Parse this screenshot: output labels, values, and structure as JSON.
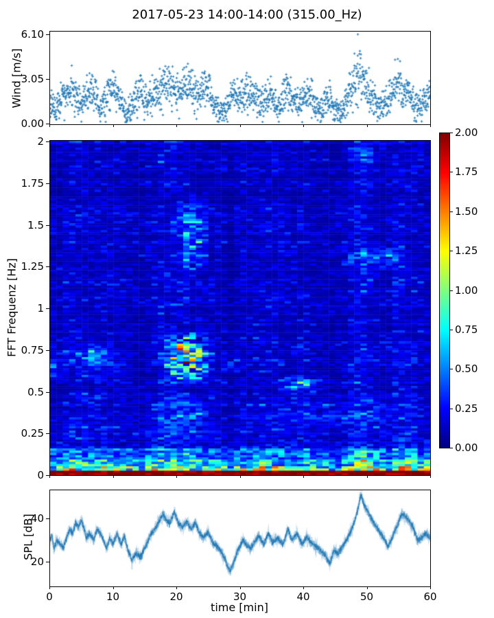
{
  "title": "2017-05-23 14:00-14:00 (315.00_Hz)",
  "colors": {
    "series_blue": "#1f77b4",
    "spine": "#000000",
    "background": "#ffffff",
    "colormap_min": "#000080",
    "colormap_max": "#800000"
  },
  "chart_data": [
    {
      "id": "wind",
      "type": "scatter",
      "marker": "plus",
      "ylabel": "Wind [m/s]",
      "ytick_labels": [
        "0.00",
        "3.05",
        "6.10"
      ],
      "ytick_values": [
        0,
        3.05,
        6.1
      ],
      "xtick_values": [
        0,
        10,
        20,
        30,
        40,
        50,
        60
      ],
      "ylim": [
        -0.05,
        6.33
      ],
      "xlim": [
        0,
        60
      ],
      "n_points": 1750,
      "seed": 42,
      "peak_point": [
        48.6,
        6.1
      ],
      "envelope_t_step_min": 1,
      "envelope_mean": [
        1.6,
        0.9,
        1.8,
        2.2,
        2.0,
        1.2,
        2.0,
        2.2,
        1.0,
        1.8,
        2.6,
        1.8,
        0.7,
        1.2,
        2.2,
        1.5,
        1.8,
        2.2,
        2.6,
        2.6,
        2.0,
        2.4,
        2.8,
        1.9,
        2.2,
        2.4,
        1.4,
        0.7,
        1.0,
        2.2,
        1.6,
        2.2,
        2.2,
        1.2,
        1.6,
        1.9,
        1.0,
        1.9,
        2.2,
        1.4,
        1.9,
        2.2,
        1.2,
        0.9,
        1.7,
        1.1,
        0.8,
        1.9,
        2.9,
        3.4,
        2.4,
        1.7,
        1.1,
        1.5,
        2.0,
        2.8,
        2.4,
        1.8,
        1.1,
        1.6,
        1.9
      ],
      "envelope_max": [
        2.8,
        1.6,
        3.3,
        4.4,
        3.6,
        2.2,
        3.4,
        3.6,
        1.9,
        3.3,
        4.35,
        3.0,
        1.4,
        2.4,
        3.9,
        2.6,
        3.2,
        3.8,
        4.5,
        4.7,
        3.4,
        4.0,
        4.75,
        3.2,
        3.6,
        3.6,
        2.4,
        1.4,
        2.0,
        3.5,
        2.8,
        3.5,
        3.4,
        2.2,
        2.8,
        3.3,
        1.8,
        3.2,
        3.8,
        2.4,
        3.3,
        3.45,
        2.2,
        1.7,
        3.2,
        2.0,
        1.5,
        3.3,
        5.5,
        6.1,
        4.5,
        2.9,
        2.0,
        2.6,
        3.5,
        5.45,
        4.6,
        3.3,
        2.0,
        2.7,
        3.0
      ]
    },
    {
      "id": "spectrogram",
      "type": "heatmap",
      "ylabel": "FFT Frequenz [Hz]",
      "ytick_labels": [
        "0",
        "0.25",
        "0.5",
        "0.75",
        "1",
        "1.25",
        "1.5",
        "1.75",
        "2"
      ],
      "ytick_values": [
        0,
        0.25,
        0.5,
        0.75,
        1,
        1.25,
        1.5,
        1.75,
        2
      ],
      "xtick_values": [
        0,
        10,
        20,
        30,
        40,
        50,
        60
      ],
      "ylim": [
        0,
        2
      ],
      "xlim": [
        0,
        60
      ],
      "colormap": "jet",
      "clim": [
        0,
        2
      ],
      "grid_cols": 60,
      "grid_rows": 150,
      "seed": 7,
      "background_base": 0.1,
      "background_rand": 0.4,
      "bottom_bands": [
        {
          "f": [
            0.0,
            0.022
          ],
          "base": 1.85,
          "rand": 0.3,
          "use_colfactor": false
        },
        {
          "f": [
            0.022,
            0.05
          ],
          "base": 0.55,
          "rand": 1.5,
          "use_colfactor": true
        },
        {
          "f": [
            0.05,
            0.09
          ],
          "base": 0.4,
          "rand": 1.1,
          "use_colfactor": true
        },
        {
          "f": [
            0.09,
            0.16
          ],
          "base": 0.28,
          "rand": 0.75,
          "use_colfactor": true
        }
      ],
      "low_freq_glow": {
        "f_max": 0.5,
        "amp": 0.22
      },
      "hotspots": [
        {
          "t": [
            17,
            26
          ],
          "f": [
            0.52,
            0.88
          ],
          "amp": 1.1
        },
        {
          "t": [
            19.5,
            25.5
          ],
          "f": [
            1.2,
            1.68
          ],
          "amp": 0.55
        },
        {
          "t": [
            0,
            1.6
          ],
          "f": [
            0.55,
            0.8
          ],
          "amp": 0.5
        },
        {
          "t": [
            5,
            10
          ],
          "f": [
            0.65,
            0.8
          ],
          "amp": 0.35
        },
        {
          "t": [
            36,
            44.5
          ],
          "f": [
            0.48,
            0.6
          ],
          "amp": 0.6
        },
        {
          "t": [
            33,
            60
          ],
          "f": [
            0.28,
            0.47
          ],
          "amp": 0.25
        },
        {
          "t": [
            45,
            57
          ],
          "f": [
            1.18,
            1.4
          ],
          "amp": 0.35
        },
        {
          "t": [
            46,
            52
          ],
          "f": [
            1.85,
            1.98
          ],
          "amp": 0.3
        },
        {
          "t": [
            0,
            14
          ],
          "f": [
            0.55,
            0.78
          ],
          "amp": 0.2
        },
        {
          "t": [
            26.5,
            31
          ],
          "f": [
            0.6,
            0.75
          ],
          "amp": 0.25
        },
        {
          "t": [
            15,
            26
          ],
          "f": [
            0.2,
            0.5
          ],
          "amp": 0.3
        }
      ]
    },
    {
      "id": "colorbar",
      "type": "colorbar",
      "colormap": "jet",
      "tick_labels": [
        "0.00",
        "0.25",
        "0.50",
        "0.75",
        "1.00",
        "1.25",
        "1.50",
        "1.75",
        "2.00"
      ],
      "tick_values": [
        0,
        0.25,
        0.5,
        0.75,
        1,
        1.25,
        1.5,
        1.75,
        2
      ],
      "range": [
        0,
        2
      ]
    },
    {
      "id": "spl",
      "type": "line",
      "ylabel": "SPL [dB]",
      "xlabel": "time [min]",
      "ytick_labels": [
        "20",
        "40"
      ],
      "ytick_values": [
        20,
        40
      ],
      "xtick_labels": [
        "0",
        "10",
        "20",
        "30",
        "40",
        "50",
        "60"
      ],
      "xtick_values": [
        0,
        10,
        20,
        30,
        40,
        50,
        60
      ],
      "ylim": [
        8.9,
        53.3
      ],
      "xlim": [
        0,
        60
      ],
      "seed": 99,
      "noise_amp": 1.6,
      "n_points": 2500,
      "keypoints": [
        [
          0,
          30
        ],
        [
          0.4,
          32
        ],
        [
          0.7,
          26
        ],
        [
          1.2,
          30
        ],
        [
          1.7,
          28
        ],
        [
          2.2,
          26.5
        ],
        [
          2.7,
          31
        ],
        [
          3.2,
          35
        ],
        [
          3.7,
          33
        ],
        [
          4.1,
          38
        ],
        [
          4.6,
          36
        ],
        [
          5,
          39
        ],
        [
          5.4,
          36
        ],
        [
          5.8,
          31
        ],
        [
          6.3,
          33
        ],
        [
          7,
          30
        ],
        [
          7.5,
          35
        ],
        [
          8,
          33
        ],
        [
          8.4,
          31
        ],
        [
          9,
          26
        ],
        [
          9.5,
          31
        ],
        [
          10,
          28
        ],
        [
          10.7,
          33
        ],
        [
          11.3,
          28
        ],
        [
          11.8,
          32
        ],
        [
          12.4,
          25
        ],
        [
          13,
          21
        ],
        [
          13.7,
          24
        ],
        [
          14.3,
          22
        ],
        [
          15,
          26
        ],
        [
          15.7,
          31
        ],
        [
          16.3,
          34
        ],
        [
          17,
          37
        ],
        [
          17.9,
          42
        ],
        [
          18.5,
          39
        ],
        [
          19,
          38
        ],
        [
          19.7,
          43
        ],
        [
          20.3,
          38
        ],
        [
          21,
          36
        ],
        [
          21.7,
          38.5
        ],
        [
          22.3,
          35
        ],
        [
          23,
          38
        ],
        [
          23.7,
          33
        ],
        [
          24.3,
          31
        ],
        [
          25,
          33.5
        ],
        [
          25.7,
          29
        ],
        [
          26.3,
          27.5
        ],
        [
          27,
          25
        ],
        [
          27.7,
          21
        ],
        [
          28.4,
          15.5
        ],
        [
          29,
          19
        ],
        [
          29.5,
          24
        ],
        [
          30,
          27
        ],
        [
          30.5,
          30
        ],
        [
          31,
          28
        ],
        [
          31.7,
          26
        ],
        [
          32.3,
          29
        ],
        [
          33,
          32
        ],
        [
          33.8,
          28
        ],
        [
          34.5,
          33
        ],
        [
          35.2,
          29
        ],
        [
          36,
          31
        ],
        [
          36.8,
          28
        ],
        [
          37.6,
          35
        ],
        [
          38.2,
          30
        ],
        [
          39,
          33
        ],
        [
          39.8,
          28
        ],
        [
          40.5,
          31.5
        ],
        [
          41.2,
          29
        ],
        [
          42,
          27
        ],
        [
          42.8,
          25
        ],
        [
          43.5,
          23
        ],
        [
          44.2,
          19
        ],
        [
          44.8,
          25
        ],
        [
          45.5,
          24
        ],
        [
          46,
          26
        ],
        [
          47,
          31
        ],
        [
          47.8,
          36
        ],
        [
          48.5,
          43
        ],
        [
          49.1,
          51
        ],
        [
          49.6,
          46
        ],
        [
          50,
          44
        ],
        [
          50.7,
          40
        ],
        [
          51.3,
          37
        ],
        [
          52,
          34
        ],
        [
          52.7,
          31
        ],
        [
          53.3,
          27
        ],
        [
          54,
          31
        ],
        [
          54.7,
          36
        ],
        [
          55.5,
          42
        ],
        [
          56,
          41
        ],
        [
          56.7,
          39
        ],
        [
          57.3,
          36
        ],
        [
          58,
          30
        ],
        [
          58.7,
          31
        ],
        [
          59.3,
          33
        ],
        [
          60,
          31
        ]
      ]
    }
  ]
}
